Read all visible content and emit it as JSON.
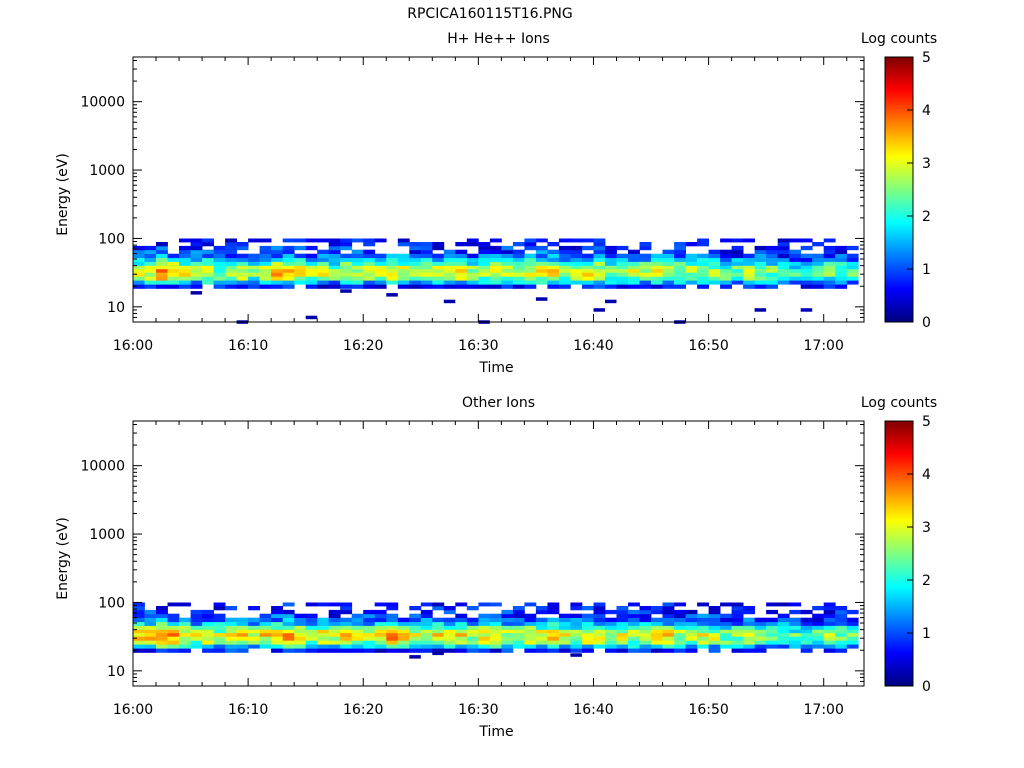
{
  "figure": {
    "title": "RPCICA160115T16.PNG"
  },
  "colors": {
    "colormap": [
      "#00007f",
      "#0000ff",
      "#0080ff",
      "#00ffff",
      "#80ff80",
      "#ffff00",
      "#ff8000",
      "#ff0000",
      "#7f0000"
    ]
  },
  "chart_data": [
    {
      "type": "heatmap",
      "title": "H+ He++ Ions",
      "xlabel": "Time",
      "ylabel": "Energy (eV)",
      "x_ticks": [
        "16:00",
        "16:10",
        "16:20",
        "16:30",
        "16:40",
        "16:50",
        "17:00"
      ],
      "x_range_minutes": [
        0,
        63.5
      ],
      "y_ticks": [
        "10",
        "100",
        "1000",
        "10000"
      ],
      "y_scale": "log",
      "y_range": [
        6,
        45000
      ],
      "colorbar": {
        "label": "Log counts",
        "ticks": [
          "0",
          "1",
          "2",
          "3",
          "4",
          "5"
        ],
        "range": [
          0,
          5
        ]
      },
      "energy_bins": [
        20,
        23,
        26,
        30,
        34,
        38,
        43,
        49,
        56,
        64,
        73,
        83,
        95
      ],
      "time_bins_minutes": [
        0,
        1,
        2,
        3,
        4,
        5,
        6,
        7,
        8,
        9,
        10,
        11,
        12,
        13,
        14,
        15,
        16,
        17,
        18,
        19,
        20,
        21,
        22,
        23,
        24,
        25,
        26,
        27,
        28,
        29,
        30,
        31,
        32,
        33,
        34,
        35,
        36,
        37,
        38,
        39,
        40,
        41,
        42,
        43,
        44,
        45,
        46,
        47,
        48,
        49,
        50,
        51,
        52,
        53,
        54,
        55,
        56,
        57,
        58,
        59,
        60,
        61,
        62
      ],
      "profile": [
        0.6,
        1.7,
        2.6,
        3.0,
        3.1,
        2.8,
        2.3,
        1.7,
        1.2,
        1.0,
        0.8,
        0.6,
        0.5
      ],
      "activity": [
        0.9,
        1.0,
        1.2,
        1.1,
        1.0,
        0.9,
        1.0,
        0.8,
        0.9,
        1.0,
        0.8,
        1.0,
        1.1,
        1.0,
        1.0,
        0.9,
        1.0,
        0.8,
        1.0,
        0.9,
        0.9,
        1.0,
        1.1,
        1.0,
        0.9,
        0.9,
        1.0,
        1.0,
        1.0,
        0.9,
        0.9,
        1.0,
        0.9,
        0.9,
        1.0,
        1.0,
        1.0,
        0.9,
        0.9,
        1.0,
        1.0,
        0.9,
        0.9,
        0.9,
        0.9,
        1.0,
        1.0,
        0.9,
        0.9,
        0.9,
        0.9,
        0.8,
        0.8,
        0.9,
        0.8,
        0.8,
        0.7,
        0.7,
        0.6,
        0.7,
        0.8,
        0.8,
        0.7
      ],
      "sparse_points": [
        {
          "t": 5,
          "e": 16,
          "v": 0.2
        },
        {
          "t": 9,
          "e": 6,
          "v": 0.2
        },
        {
          "t": 15,
          "e": 7,
          "v": 0.2
        },
        {
          "t": 18,
          "e": 17,
          "v": 0.2
        },
        {
          "t": 22,
          "e": 15,
          "v": 0.2
        },
        {
          "t": 27,
          "e": 12,
          "v": 0.2
        },
        {
          "t": 30,
          "e": 6,
          "v": 0.2
        },
        {
          "t": 35,
          "e": 13,
          "v": 0.2
        },
        {
          "t": 40,
          "e": 9,
          "v": 0.2
        },
        {
          "t": 41,
          "e": 12,
          "v": 0.2
        },
        {
          "t": 47,
          "e": 6,
          "v": 0.2
        },
        {
          "t": 54,
          "e": 9,
          "v": 0.2
        },
        {
          "t": 58,
          "e": 9,
          "v": 0.3
        }
      ]
    },
    {
      "type": "heatmap",
      "title": "Other Ions",
      "xlabel": "Time",
      "ylabel": "Energy (eV)",
      "x_ticks": [
        "16:00",
        "16:10",
        "16:20",
        "16:30",
        "16:40",
        "16:50",
        "17:00"
      ],
      "x_range_minutes": [
        0,
        63.5
      ],
      "y_ticks": [
        "10",
        "100",
        "1000",
        "10000"
      ],
      "y_scale": "log",
      "y_range": [
        6,
        45000
      ],
      "colorbar": {
        "label": "Log counts",
        "ticks": [
          "0",
          "1",
          "2",
          "3",
          "4",
          "5"
        ],
        "range": [
          0,
          5
        ]
      },
      "energy_bins": [
        20,
        23,
        26,
        30,
        34,
        38,
        43,
        49,
        56,
        64,
        73,
        83,
        95
      ],
      "time_bins_minutes": [
        0,
        1,
        2,
        3,
        4,
        5,
        6,
        7,
        8,
        9,
        10,
        11,
        12,
        13,
        14,
        15,
        16,
        17,
        18,
        19,
        20,
        21,
        22,
        23,
        24,
        25,
        26,
        27,
        28,
        29,
        30,
        31,
        32,
        33,
        34,
        35,
        36,
        37,
        38,
        39,
        40,
        41,
        42,
        43,
        44,
        45,
        46,
        47,
        48,
        49,
        50,
        51,
        52,
        53,
        54,
        55,
        56,
        57,
        58,
        59,
        60,
        61,
        62
      ],
      "profile": [
        0.7,
        1.8,
        2.7,
        3.1,
        3.2,
        2.9,
        2.3,
        1.7,
        1.2,
        1.0,
        0.8,
        0.6,
        0.5
      ],
      "activity": [
        1.0,
        1.1,
        1.2,
        1.1,
        1.0,
        0.9,
        1.0,
        0.9,
        1.0,
        1.0,
        0.9,
        1.0,
        1.1,
        1.1,
        1.0,
        0.9,
        1.0,
        0.9,
        1.0,
        0.9,
        0.9,
        1.0,
        1.1,
        1.0,
        0.9,
        0.9,
        1.0,
        1.0,
        1.0,
        0.9,
        1.0,
        1.0,
        0.9,
        0.9,
        1.0,
        1.0,
        1.0,
        0.9,
        0.9,
        1.0,
        1.0,
        0.9,
        0.9,
        0.9,
        0.9,
        1.0,
        1.0,
        0.9,
        0.9,
        0.9,
        0.9,
        0.8,
        0.8,
        0.9,
        0.8,
        0.8,
        0.7,
        0.7,
        0.6,
        0.7,
        0.8,
        0.8,
        0.7
      ],
      "sparse_points": [
        {
          "t": 24,
          "e": 16,
          "v": 0.2
        },
        {
          "t": 26,
          "e": 18,
          "v": 0.2
        },
        {
          "t": 38,
          "e": 17,
          "v": 0.2
        }
      ]
    }
  ]
}
